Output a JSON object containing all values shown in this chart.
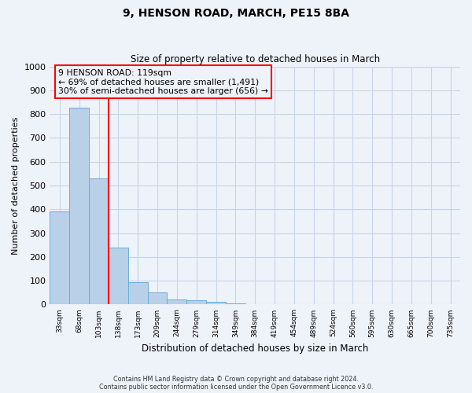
{
  "title": "9, HENSON ROAD, MARCH, PE15 8BA",
  "subtitle": "Size of property relative to detached houses in March",
  "xlabel": "Distribution of detached houses by size in March",
  "ylabel": "Number of detached properties",
  "bar_values": [
    390,
    828,
    530,
    240,
    95,
    50,
    20,
    17,
    12,
    5,
    0,
    0,
    0,
    0,
    0,
    0,
    0,
    0,
    0,
    0,
    0
  ],
  "bar_labels": [
    "33sqm",
    "68sqm",
    "103sqm",
    "138sqm",
    "173sqm",
    "209sqm",
    "244sqm",
    "279sqm",
    "314sqm",
    "349sqm",
    "384sqm",
    "419sqm",
    "454sqm",
    "489sqm",
    "524sqm",
    "560sqm",
    "595sqm",
    "630sqm",
    "665sqm",
    "700sqm",
    "735sqm"
  ],
  "bar_color": "#b8d0e8",
  "bar_edge_color": "#6aaed6",
  "vline_x": 2,
  "vline_color": "red",
  "annotation_line1": "9 HENSON ROAD: 119sqm",
  "annotation_line2": "← 69% of detached houses are smaller (1,491)",
  "annotation_line3": "30% of semi-detached houses are larger (656) →",
  "ylim": [
    0,
    1000
  ],
  "yticks": [
    0,
    100,
    200,
    300,
    400,
    500,
    600,
    700,
    800,
    900,
    1000
  ],
  "bg_color": "#eef2f9",
  "grid_color": "#d0d8e8",
  "footer_line1": "Contains HM Land Registry data © Crown copyright and database right 2024.",
  "footer_line2": "Contains public sector information licensed under the Open Government Licence v3.0."
}
